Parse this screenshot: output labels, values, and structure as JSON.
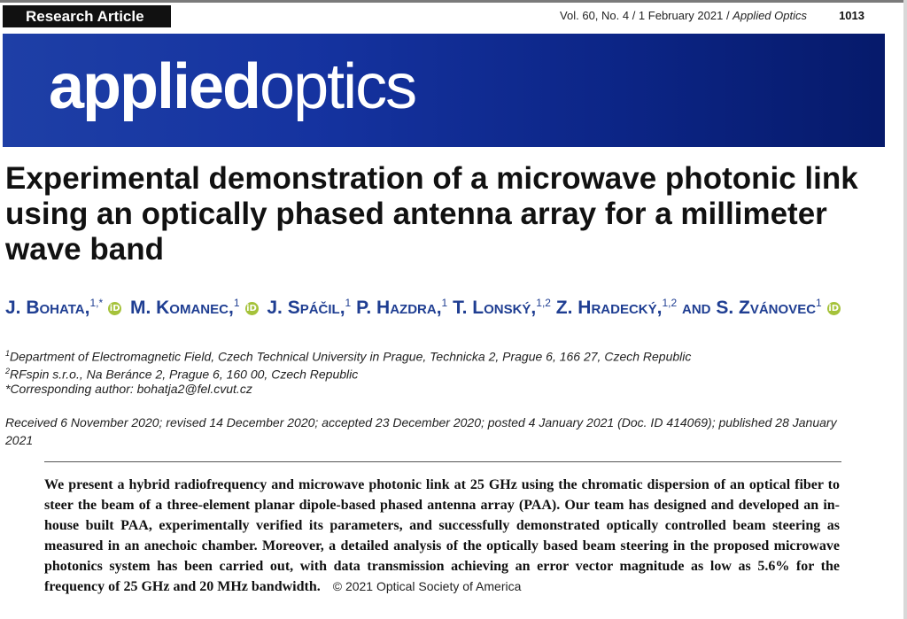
{
  "header": {
    "badge": "Research Article",
    "journal_vol": "Vol. 60, No. 4 / 1 February 2021 / ",
    "journal_name": "Applied Optics",
    "page_number": "1013"
  },
  "banner": {
    "logo_part1": "applied",
    "logo_part2": "optics"
  },
  "title": "Experimental demonstration of a microwave photonic link using an optically phased antenna array for a millimeter wave band",
  "authors": [
    {
      "name": "J. Bohata,",
      "sup": "1,*",
      "orcid": true
    },
    {
      "name": "M. Komanec,",
      "sup": "1",
      "orcid": true
    },
    {
      "name": "J. Spáčil,",
      "sup": "1",
      "orcid": false
    },
    {
      "name": "P. Hazdra,",
      "sup": "1",
      "orcid": false
    },
    {
      "name": "T. Lonský,",
      "sup": "1,2",
      "orcid": false
    },
    {
      "name": "Z. Hradecký,",
      "sup": "1,2",
      "orcid": false
    },
    {
      "name": "and",
      "sup": "",
      "orcid": false
    },
    {
      "name": "S. Zvánovec",
      "sup": "1",
      "orcid": true
    }
  ],
  "affiliations": [
    {
      "sup": "1",
      "text": "Department of Electromagnetic Field, Czech Technical University in Prague, Technicka 2, Prague 6, 166 27, Czech Republic"
    },
    {
      "sup": "2",
      "text": "RFspin s.r.o., Na Beránce 2, Prague 6, 160 00, Czech Republic"
    },
    {
      "sup": "",
      "text": "*Corresponding author: bohatja2@fel.cvut.cz"
    }
  ],
  "dates": "Received 6 November 2020; revised 14 December 2020; accepted 23 December 2020; posted 4 January 2021 (Doc. ID 414069); published 28 January 2021",
  "abstract": "We present a hybrid radiofrequency and microwave photonic link at 25 GHz using the chromatic dispersion of an optical fiber to steer the beam of a three-element planar dipole-based phased antenna array (PAA). Our team has designed and developed an in-house built PAA, experimentally verified its parameters, and successfully demonstrated optically controlled beam steering as measured in an anechoic chamber. Moreover, a detailed analysis of the optically based beam steering in the proposed microwave photonics system has been carried out, with data transmission achieving an error vector magnitude as low as 5.6% for the frequency of 25 GHz and 20 MHz bandwidth.",
  "copyright": "© 2021 Optical Society of America",
  "orcid_glyph": "iD",
  "colors": {
    "author_blue": "#1f3e92",
    "banner_blue": "#1533a0",
    "orcid_green": "#a5c23a"
  }
}
